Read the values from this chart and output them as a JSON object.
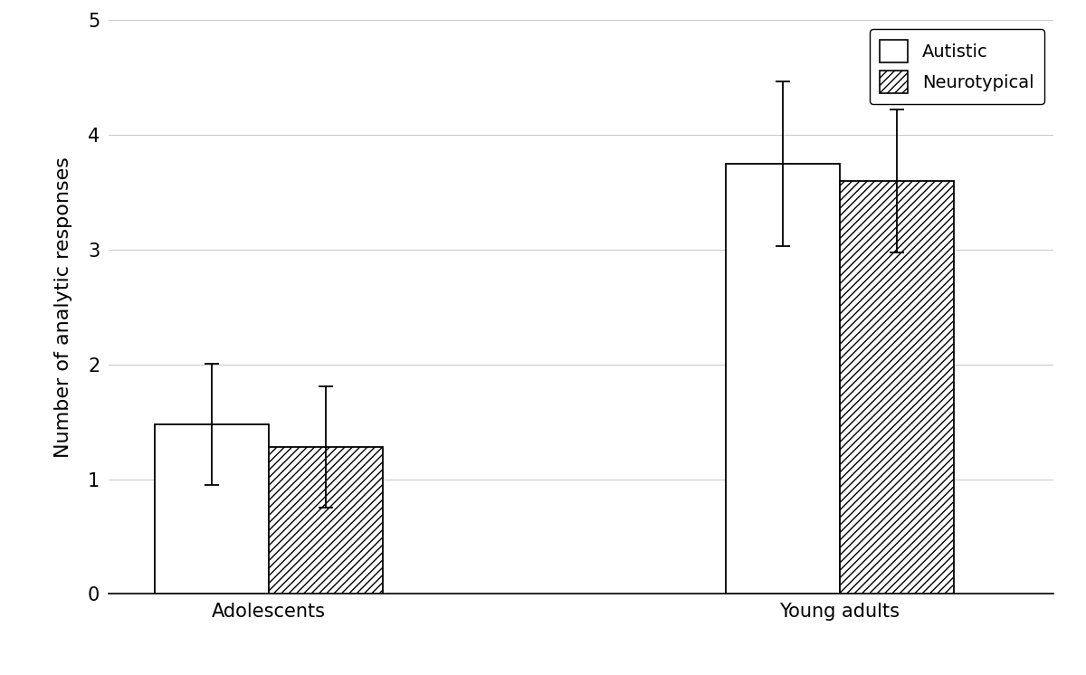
{
  "groups": [
    "Adolescents",
    "Young adults"
  ],
  "autistic_means": [
    1.48,
    3.75
  ],
  "neurotypical_means": [
    1.28,
    3.6
  ],
  "autistic_errors": [
    0.53,
    0.72
  ],
  "neurotypical_errors": [
    0.53,
    0.62
  ],
  "ylabel": "Number of analytic responses",
  "ylim": [
    0,
    5
  ],
  "yticks": [
    0,
    1,
    2,
    3,
    4,
    5
  ],
  "legend_labels": [
    "Autistic",
    "Neurotypical"
  ],
  "bar_width": 0.32,
  "group_positions": [
    1.0,
    2.6
  ],
  "xlim": [
    0.55,
    3.2
  ],
  "background_color": "#ffffff",
  "grid_color": "#cccccc",
  "bar_color_autistic": "#ffffff",
  "bar_edge_color": "#000000",
  "error_cap_size": 6,
  "hatch_pattern": "////",
  "ylabel_fontsize": 16,
  "tick_fontsize": 15,
  "legend_fontsize": 14
}
